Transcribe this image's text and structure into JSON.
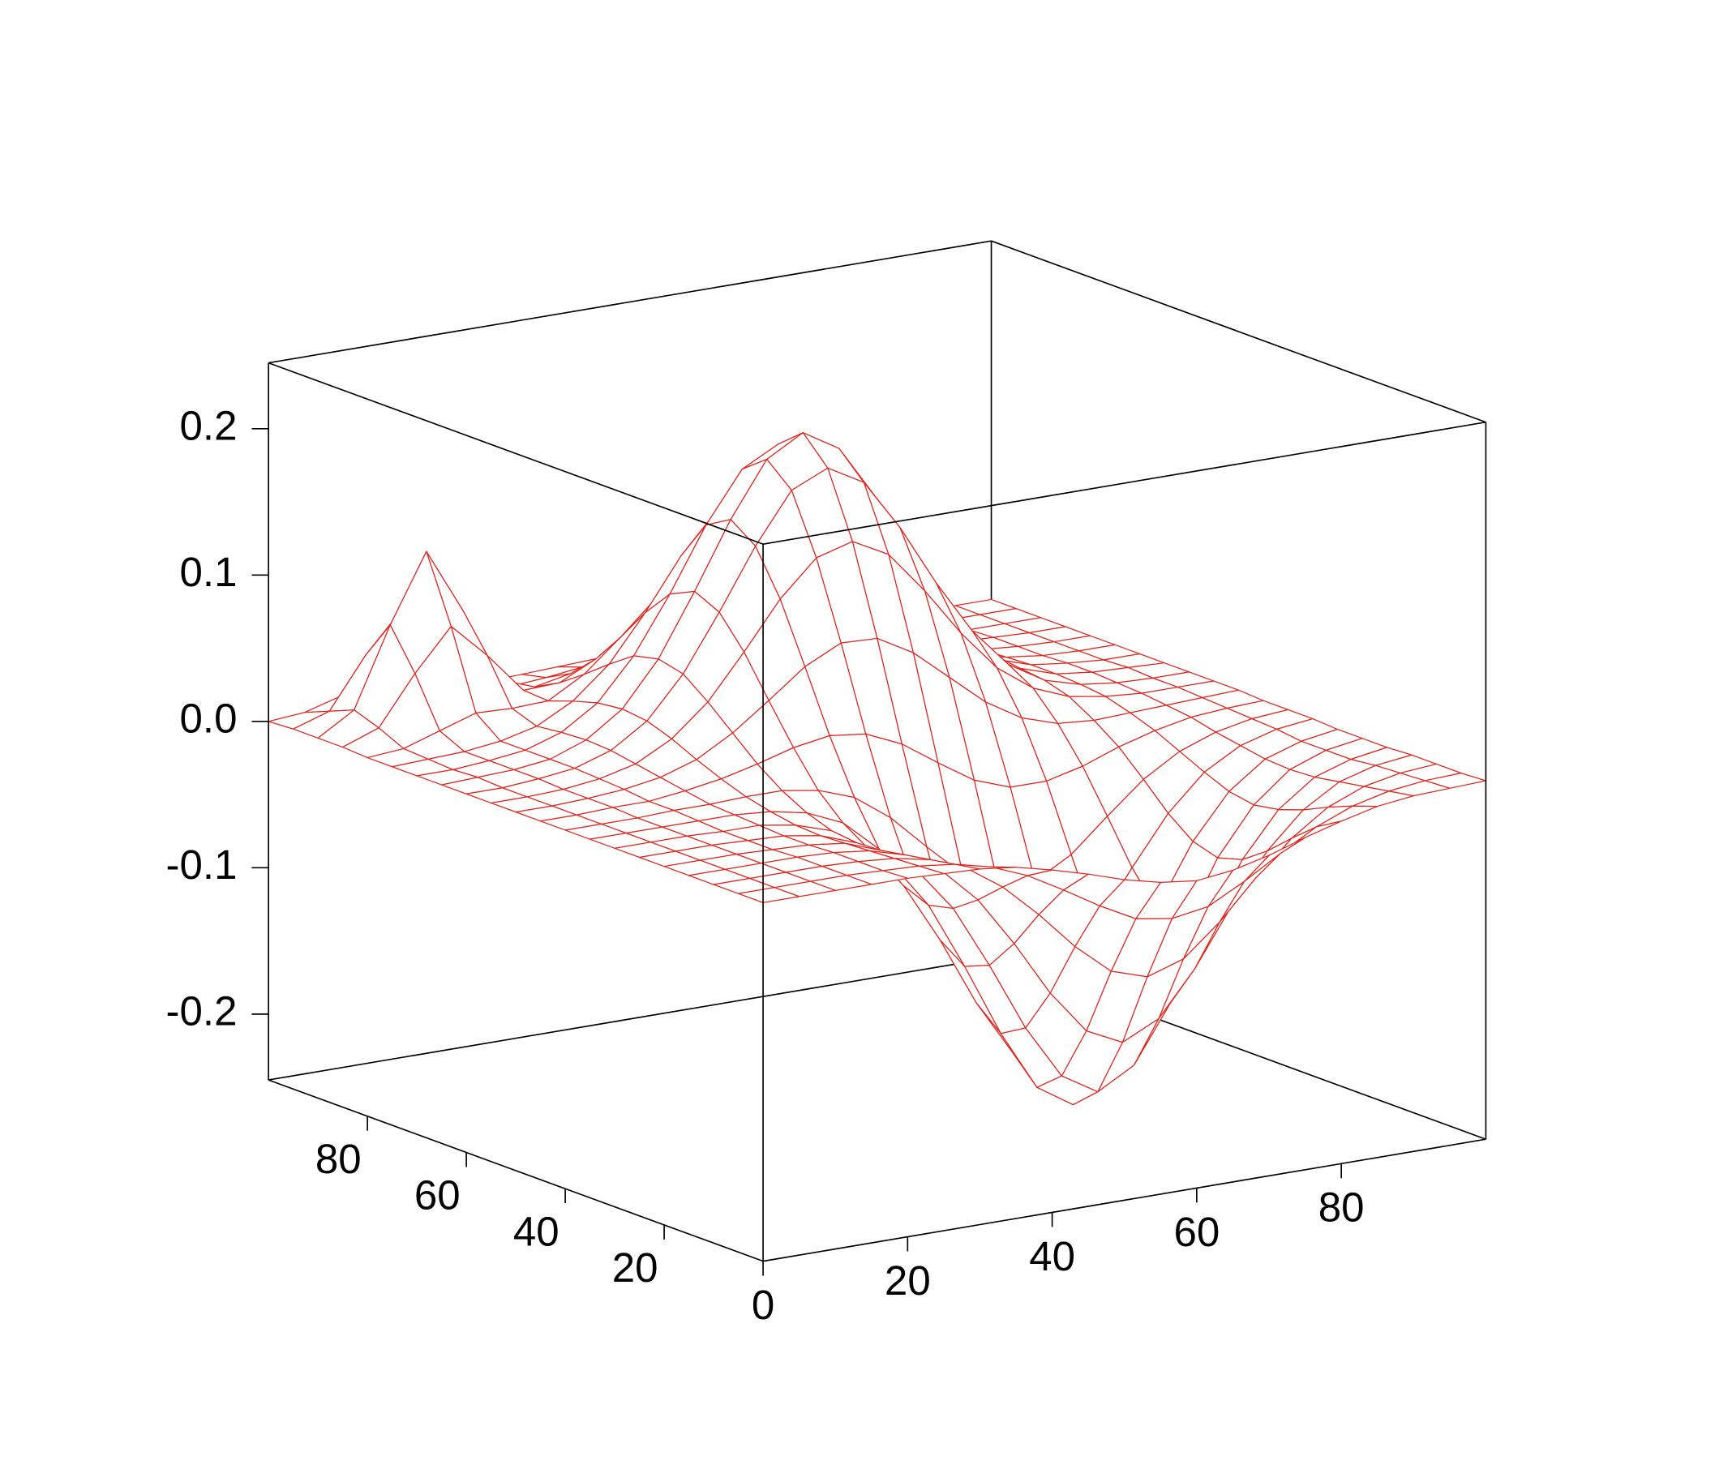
{
  "chart_data": {
    "type": "surface",
    "color": "#e2261f",
    "x": [
      0,
      5,
      10,
      15,
      20,
      25,
      30,
      35,
      40,
      45,
      50,
      55,
      60,
      65,
      70,
      75,
      80,
      85,
      90,
      95,
      100
    ],
    "y": [
      0,
      5,
      10,
      15,
      20,
      25,
      30,
      35,
      40,
      45,
      50,
      55,
      60,
      65,
      70,
      75,
      80,
      85,
      90,
      95,
      100
    ],
    "z": [
      [
        0,
        0,
        0,
        0,
        0,
        -0.001,
        -0.002,
        -0.005,
        -0.011,
        -0.018,
        -0.026,
        -0.032,
        -0.035,
        -0.032,
        -0.026,
        -0.018,
        -0.011,
        -0.005,
        -0.002,
        -0.001,
        0
      ],
      [
        0,
        0,
        0,
        0,
        -0.001,
        -0.002,
        -0.005,
        -0.011,
        -0.021,
        -0.035,
        -0.05,
        -0.063,
        -0.067,
        -0.063,
        -0.05,
        -0.035,
        -0.021,
        -0.011,
        -0.005,
        -0.002,
        -0.001
      ],
      [
        0,
        0,
        0,
        0,
        -0.001,
        -0.003,
        -0.008,
        -0.018,
        -0.035,
        -0.058,
        -0.084,
        -0.105,
        -0.113,
        -0.105,
        -0.084,
        -0.058,
        -0.035,
        -0.018,
        -0.008,
        -0.003,
        -0.001
      ],
      [
        0,
        0,
        0,
        0,
        -0.001,
        -0.004,
        -0.011,
        -0.026,
        -0.05,
        -0.084,
        -0.122,
        -0.152,
        -0.164,
        -0.152,
        -0.122,
        -0.084,
        -0.05,
        -0.026,
        -0.011,
        -0.004,
        -0.001
      ],
      [
        0,
        0,
        0,
        -0.001,
        -0.002,
        -0.005,
        -0.014,
        -0.032,
        -0.062,
        -0.105,
        -0.152,
        -0.189,
        -0.204,
        -0.19,
        -0.152,
        -0.105,
        -0.062,
        -0.032,
        -0.014,
        -0.006,
        -0.002
      ],
      [
        0,
        0,
        0,
        -0.001,
        -0.002,
        -0.006,
        -0.015,
        -0.034,
        -0.066,
        -0.112,
        -0.162,
        -0.203,
        -0.219,
        -0.204,
        -0.163,
        -0.113,
        -0.067,
        -0.035,
        -0.015,
        -0.006,
        -0.002
      ],
      [
        0,
        0,
        0,
        -0.001,
        -0.001,
        -0.005,
        -0.013,
        -0.029,
        -0.059,
        -0.1,
        -0.147,
        -0.185,
        -0.2,
        -0.187,
        -0.151,
        -0.104,
        -0.062,
        -0.032,
        -0.014,
        -0.006,
        -0.002
      ],
      [
        0,
        0,
        0,
        0,
        0,
        -0.002,
        -0.007,
        -0.018,
        -0.04,
        -0.071,
        -0.108,
        -0.139,
        -0.153,
        -0.145,
        -0.118,
        -0.082,
        -0.049,
        -0.025,
        -0.011,
        -0.004,
        -0.001
      ],
      [
        0,
        0,
        0,
        0.001,
        0.001,
        0.002,
        0.002,
        -0.002,
        -0.011,
        -0.029,
        -0.053,
        -0.076,
        -0.09,
        -0.089,
        -0.075,
        -0.053,
        -0.032,
        -0.017,
        -0.008,
        -0.003,
        -0.001
      ],
      [
        0,
        0,
        0.001,
        0.001,
        0.004,
        0.008,
        0.014,
        0.021,
        0.025,
        0.022,
        0.011,
        -0.006,
        -0.022,
        -0.031,
        -0.031,
        -0.025,
        -0.016,
        -0.009,
        -0.004,
        -0.002,
        -0.001
      ],
      [
        0,
        0,
        0.001,
        0.003,
        0.007,
        0.015,
        0.029,
        0.047,
        0.066,
        0.078,
        0.077,
        0.063,
        0.042,
        0.021,
        0.006,
        -0.002,
        -0.004,
        -0.003,
        -0.002,
        -0.001,
        0
      ],
      [
        0,
        0,
        0.001,
        0.004,
        0.01,
        0.023,
        0.044,
        0.074,
        0.106,
        0.13,
        0.137,
        0.124,
        0.095,
        0.062,
        0.034,
        0.016,
        0.006,
        0.002,
        0,
        0,
        0
      ],
      [
        0,
        0,
        0.002,
        0.005,
        0.013,
        0.029,
        0.057,
        0.095,
        0.136,
        0.17,
        0.181,
        0.167,
        0.132,
        0.09,
        0.053,
        0.026,
        0.011,
        0.004,
        0.001,
        0,
        0
      ],
      [
        0,
        0.001,
        0.002,
        0.005,
        0.014,
        0.031,
        0.061,
        0.103,
        0.148,
        0.185,
        0.199,
        0.184,
        0.147,
        0.101,
        0.06,
        0.03,
        0.013,
        0.005,
        0.002,
        0.001,
        0
      ],
      [
        0,
        0,
        0.002,
        0.005,
        0.013,
        0.029,
        0.057,
        0.095,
        0.138,
        0.172,
        0.185,
        0.172,
        0.138,
        0.095,
        0.056,
        0.029,
        0.013,
        0.005,
        0.002,
        0,
        0
      ],
      [
        0,
        0.001,
        0.002,
        0.005,
        0.011,
        0.024,
        0.045,
        0.076,
        0.111,
        0.138,
        0.149,
        0.138,
        0.111,
        0.076,
        0.045,
        0.023,
        0.01,
        0.004,
        0.001,
        0,
        0
      ],
      [
        0,
        0.002,
        0.01,
        0.018,
        0.017,
        0.018,
        0.032,
        0.053,
        0.076,
        0.096,
        0.103,
        0.096,
        0.076,
        0.053,
        0.031,
        0.016,
        0.007,
        0.003,
        0.001,
        0,
        0
      ],
      [
        0.001,
        0.01,
        0.043,
        0.071,
        0.047,
        0.019,
        0.02,
        0.032,
        0.046,
        0.057,
        0.061,
        0.057,
        0.046,
        0.032,
        0.019,
        0.01,
        0.004,
        0.002,
        0.001,
        0,
        0
      ],
      [
        0.001,
        0.016,
        0.07,
        0.116,
        0.072,
        0.02,
        0.011,
        0.016,
        0.023,
        0.029,
        0.031,
        0.029,
        0.023,
        0.016,
        0.01,
        0.005,
        0.002,
        0.001,
        0,
        0,
        0
      ],
      [
        0.001,
        0.009,
        0.043,
        0.07,
        0.043,
        0.012,
        0.005,
        0.007,
        0.01,
        0.013,
        0.014,
        0.013,
        0.01,
        0.007,
        0.004,
        0.002,
        0.001,
        0,
        0,
        0,
        0
      ],
      [
        0,
        0.002,
        0.009,
        0.016,
        0.01,
        0.003,
        0.002,
        0.003,
        0.004,
        0.005,
        0.005,
        0.005,
        0.004,
        0.003,
        0.002,
        0.001,
        0,
        0,
        0,
        0,
        0
      ]
    ],
    "xlim": [
      0,
      100
    ],
    "ylim": [
      0,
      100
    ],
    "zlim": [
      -0.245,
      0.245
    ],
    "xticks": [
      0,
      20,
      40,
      60,
      80
    ],
    "yticks": [
      20,
      40,
      60,
      80
    ],
    "zticks": [
      -0.2,
      -0.1,
      {
        "value": 0,
        "label": "0.0"
      },
      0.1,
      0.2
    ]
  }
}
